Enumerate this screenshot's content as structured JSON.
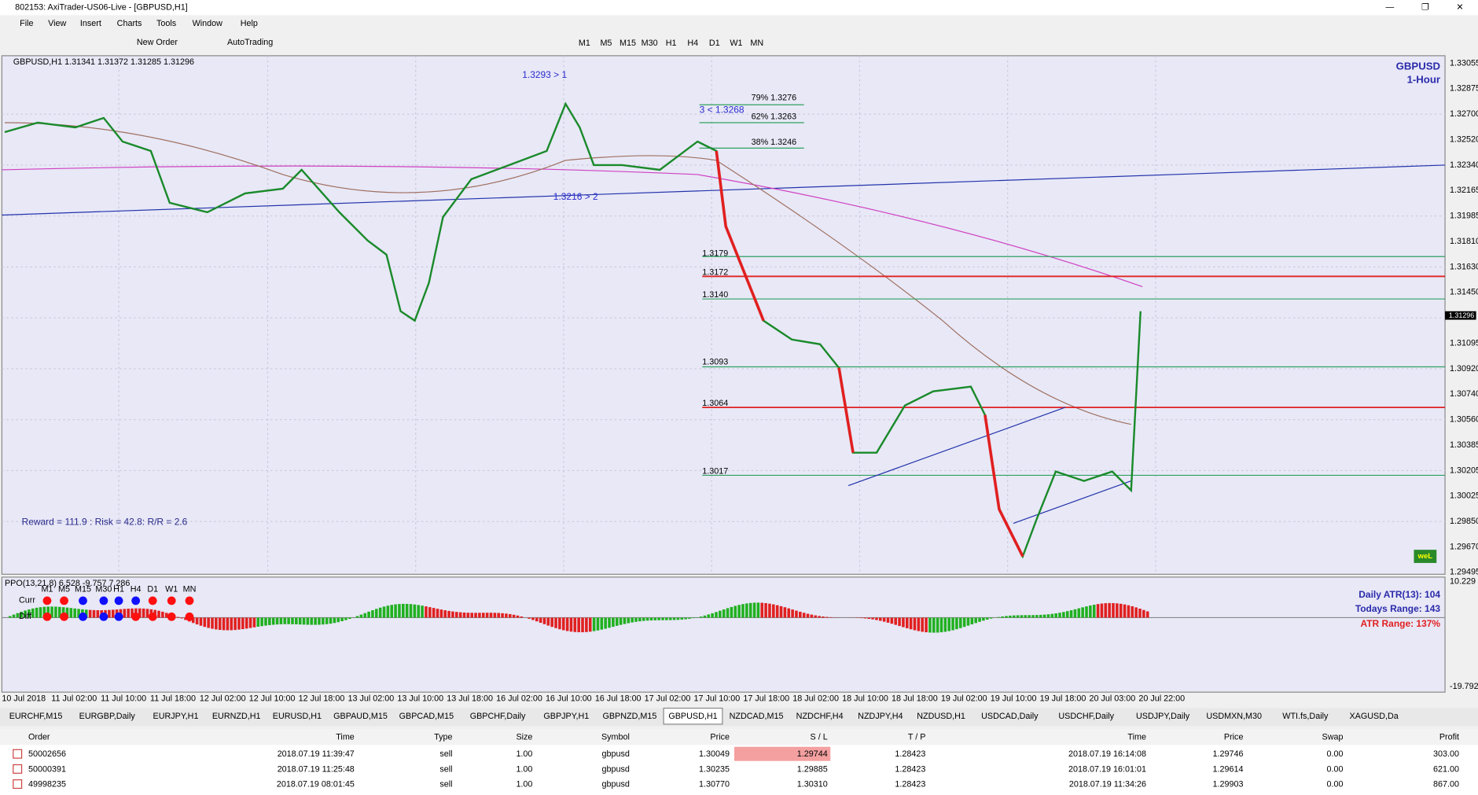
{
  "window": {
    "title": "802153: AxiTrader-US06-Live - [GBPUSD,H1]"
  },
  "menu": [
    "File",
    "View",
    "Insert",
    "Charts",
    "Tools",
    "Window",
    "Help"
  ],
  "toolbar": {
    "new_order": "New Order",
    "auto_trading": "AutoTrading",
    "timeframes": [
      "M1",
      "M5",
      "M15",
      "M30",
      "H1",
      "H4",
      "D1",
      "W1",
      "MN"
    ]
  },
  "chart": {
    "header": "GBPUSD,H1 1.31341 1.31372 1.31285 1.31296",
    "symbol": "GBPUSD",
    "period": "1-Hour",
    "blue_labels": [
      "1.3293 > 1",
      "3 < 1.3268",
      "1.3216 > 2"
    ],
    "fib": [
      "79% 1.3276",
      "62% 1.3263",
      "38% 1.3246"
    ],
    "levels": [
      "1.3179",
      "1.3172",
      "1.3140",
      "1.3093",
      "1.3064",
      "1.3017"
    ],
    "reward": "Reward = 111.9 : Risk = 42.8: R/R = 2.6",
    "price_axis": [
      "1.33055",
      "1.32875",
      "1.32700",
      "1.32520",
      "1.32340",
      "1.32165",
      "1.31985",
      "1.31810",
      "1.31630",
      "1.31450",
      "1.31095",
      "1.30920",
      "1.30740",
      "1.30560",
      "1.30385",
      "1.30205",
      "1.30025",
      "1.29850",
      "1.29670",
      "1.29495"
    ],
    "current_price": "1.31296",
    "time_axis": [
      "10 Jul 2018",
      "11 Jul 02:00",
      "11 Jul 10:00",
      "11 Jul 18:00",
      "12 Jul 02:00",
      "12 Jul 10:00",
      "12 Jul 18:00",
      "13 Jul 02:00",
      "13 Jul 10:00",
      "13 Jul 18:00",
      "16 Jul 02:00",
      "16 Jul 10:00",
      "16 Jul 18:00",
      "17 Jul 02:00",
      "17 Jul 10:00",
      "17 Jul 18:00",
      "18 Jul 02:00",
      "18 Jul 10:00",
      "18 Jul 18:00",
      "19 Jul 02:00",
      "19 Jul 10:00",
      "19 Jul 18:00",
      "20 Jul 03:00",
      "20 Jul 22:00"
    ],
    "badge": "weL"
  },
  "indicator": {
    "header": "PPO(13,21,8) 6.528 -9.757 7.286",
    "timeframes": [
      "M1",
      "M5",
      "M15",
      "M30",
      "H1",
      "H4",
      "D1",
      "W1",
      "MN"
    ],
    "rows": [
      "Curr",
      "Diff"
    ],
    "atr": "Daily ATR(13): 104",
    "range": "Todays Range: 143",
    "atr_range": "ATR Range: 137%",
    "axis_top": "10.229",
    "axis_bottom": "-19.792"
  },
  "tabs": [
    "EURCHF,M15",
    "EURGBP,Daily",
    "EURJPY,H1",
    "EURNZD,H1",
    "EURUSD,H1",
    "GBPAUD,M15",
    "GBPCAD,M15",
    "GBPCHF,Daily",
    "GBPJPY,H1",
    "GBPNZD,M15",
    "GBPUSD,H1",
    "NZDCAD,M15",
    "NZDCHF,H4",
    "NZDJPY,H4",
    "NZDUSD,H1",
    "USDCAD,Daily",
    "USDCHF,Daily",
    "USDJPY,Daily",
    "USDMXN,M30",
    "WTI.fs,Daily",
    "XAGUSD,Da"
  ],
  "active_tab": 10,
  "table": {
    "headers": [
      "Order",
      "Time",
      "Type",
      "Size",
      "Symbol",
      "Price",
      "S / L",
      "T / P",
      "Time",
      "Price",
      "Swap",
      "Profit"
    ],
    "rows": [
      [
        "50002656",
        "2018.07.19 11:39:47",
        "sell",
        "1.00",
        "gbpusd",
        "1.30049",
        "1.29744",
        "1.28423",
        "2018.07.19 16:14:08",
        "1.29746",
        "0.00",
        "303.00"
      ],
      [
        "50000391",
        "2018.07.19 11:25:48",
        "sell",
        "1.00",
        "gbpusd",
        "1.30235",
        "1.29885",
        "1.28423",
        "2018.07.19 16:01:01",
        "1.29614",
        "0.00",
        "621.00"
      ],
      [
        "49998235",
        "2018.07.19 08:01:45",
        "sell",
        "1.00",
        "gbpusd",
        "1.30770",
        "1.30310",
        "1.28423",
        "2018.07.19 11:34:26",
        "1.29903",
        "0.00",
        "867.00"
      ]
    ]
  }
}
